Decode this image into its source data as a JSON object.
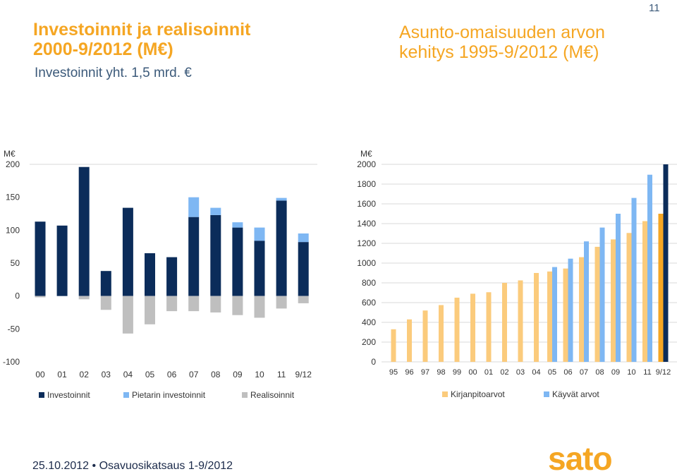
{
  "page": {
    "page_number": "11",
    "footer_date": "25.10.2012",
    "footer_sep": "•",
    "footer_text": "Osavuosikatsaus 1-9/2012",
    "logo_text": "sato"
  },
  "left": {
    "title_line1": "Investoinnit ja realisoinnit",
    "title_line2": "2000-9/2012 (M€)",
    "subtitle": "Investoinnit yht. 1,5 mrd. €"
  },
  "right": {
    "title_line1": "Asunto-omaisuuden arvon",
    "title_line2": "kehitys 1995-9/2012 (M€)"
  },
  "colors": {
    "title": "#F5A623",
    "subtitle": "#3C5A7A",
    "investoinnit": "#0B2C5A",
    "pietari": "#7EB7F3",
    "realisoinnit": "#BFBFBF",
    "kirjanpito": "#FBCB7C",
    "kayvat": "#7EB7F3",
    "last_kirjanpito": "#F5A623",
    "last_kayvat": "#0B2C5A",
    "grid": "#D9D9D9"
  },
  "chart_data": [
    {
      "type": "bar",
      "ylabel": "M€",
      "ylim": [
        -100,
        200
      ],
      "yticks": [
        "200",
        "150",
        "100",
        "50",
        "0",
        "-50",
        "-100"
      ],
      "categories": [
        "00",
        "01",
        "02",
        "03",
        "04",
        "05",
        "06",
        "07",
        "08",
        "09",
        "10",
        "11",
        "9/12"
      ],
      "series": [
        {
          "name": "Investoinnit",
          "values": [
            113,
            107,
            196,
            38,
            134,
            65,
            59,
            120,
            123,
            104,
            84,
            145,
            82
          ]
        },
        {
          "name": "Pietarin investoinnit",
          "values": [
            0,
            0,
            0,
            0,
            0,
            0,
            0,
            30,
            11,
            8,
            20,
            4,
            13
          ]
        },
        {
          "name": "Realisoinnit",
          "values": [
            -2,
            0,
            -5,
            -21,
            -57,
            -43,
            -23,
            -23,
            -25,
            -29,
            -33,
            -19,
            -11
          ]
        }
      ],
      "legend": "bottom"
    },
    {
      "type": "bar",
      "ylabel": "M€",
      "ylim": [
        0,
        2000
      ],
      "yticks": [
        "2000",
        "1800",
        "1600",
        "1400",
        "1200",
        "1000",
        "800",
        "600",
        "400",
        "200",
        "0"
      ],
      "categories": [
        "95",
        "96",
        "97",
        "98",
        "99",
        "00",
        "01",
        "02",
        "03",
        "04",
        "05",
        "06",
        "07",
        "08",
        "09",
        "10",
        "11",
        "9/12"
      ],
      "series": [
        {
          "name": "Kirjanpitoarvot",
          "values": [
            330,
            430,
            520,
            575,
            650,
            690,
            705,
            800,
            825,
            900,
            915,
            945,
            1060,
            1165,
            1240,
            1305,
            1425,
            1500
          ]
        },
        {
          "name": "Käyvät arvot",
          "values": [
            null,
            null,
            null,
            null,
            null,
            null,
            null,
            null,
            null,
            null,
            960,
            1045,
            1220,
            1360,
            1500,
            1660,
            1895,
            2000
          ]
        }
      ],
      "legend": "bottom"
    }
  ],
  "legend_left": [
    "Investoinnit",
    "Pietarin investoinnit",
    "Realisoinnit"
  ],
  "legend_right": [
    "Kirjanpitoarvot",
    "Käyvät arvot"
  ]
}
